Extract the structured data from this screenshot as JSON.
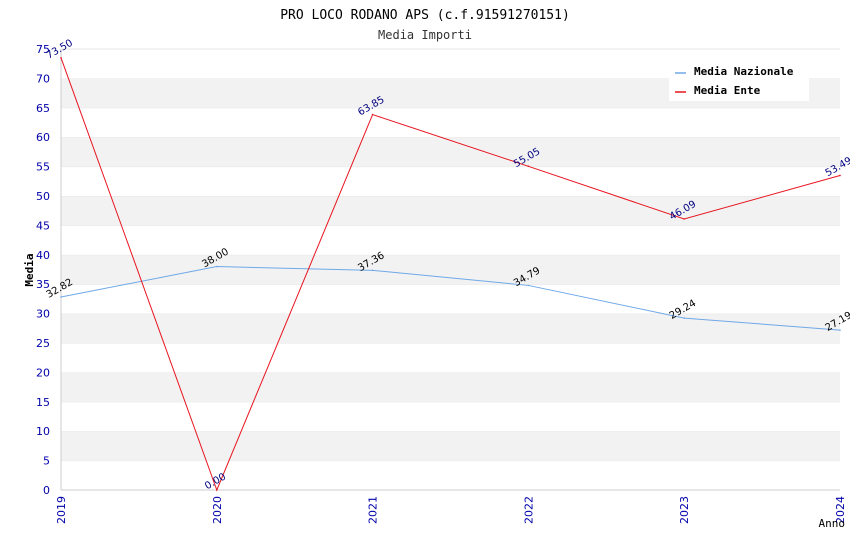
{
  "chart_data": {
    "type": "line",
    "title": "PRO LOCO RODANO APS (c.f.91591270151)",
    "subtitle": "Media Importi",
    "xlabel": "Anno",
    "ylabel": "Media",
    "x": [
      "2019",
      "2020",
      "2021",
      "2022",
      "2023",
      "2024"
    ],
    "ylim": [
      0,
      75
    ],
    "yticks": [
      "0",
      "5",
      "10",
      "15",
      "20",
      "25",
      "30",
      "35",
      "40",
      "45",
      "50",
      "55",
      "60",
      "65",
      "70",
      "75"
    ],
    "grid": "horizontal-bands",
    "legend_position": "top-right",
    "series": [
      {
        "name": "Media Nazionale",
        "color": "#6fa8e8",
        "label_color": "#000000",
        "values": [
          32.82,
          38.0,
          37.36,
          34.79,
          29.24,
          27.19
        ],
        "labels": [
          "32.82",
          "38.00",
          "37.36",
          "34.79",
          "29.24",
          "27.19"
        ]
      },
      {
        "name": "Media Ente",
        "color": "#e8141e",
        "label_color": "#000080",
        "values": [
          73.5,
          0.0,
          63.85,
          55.05,
          46.09,
          53.49
        ],
        "labels": [
          "73.50",
          "0.00",
          "63.85",
          "55.05",
          "46.09",
          "53.49"
        ]
      }
    ]
  }
}
